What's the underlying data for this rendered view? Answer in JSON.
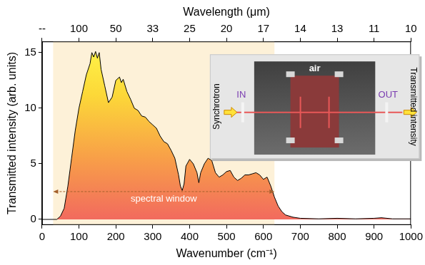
{
  "chart_data": {
    "type": "area",
    "xlabel": "Wavenumber (cm⁻¹)",
    "ylabel": "Transmitted intensity (arb. units)",
    "x2label": "Wavelength (μm)",
    "xlim": [
      0,
      1000
    ],
    "xticks": [
      0,
      100,
      200,
      300,
      400,
      500,
      600,
      700,
      800,
      900,
      1000
    ],
    "x2lim": [
      0,
      1000
    ],
    "x2ticks": [
      {
        "value": 0,
        "label": "--"
      },
      {
        "value": 100,
        "label": "100"
      },
      {
        "value": 200,
        "label": "50"
      },
      {
        "value": 300,
        "label": "33"
      },
      {
        "value": 400,
        "label": "25"
      },
      {
        "value": 500,
        "label": "20"
      },
      {
        "value": 600,
        "label": "17"
      },
      {
        "value": 700,
        "label": "14"
      },
      {
        "value": 800,
        "label": "13"
      },
      {
        "value": 900,
        "label": "11"
      },
      {
        "value": 1000,
        "label": "10"
      }
    ],
    "ylim": [
      -0.5,
      16
    ],
    "yticks": [
      0,
      5,
      10,
      15
    ],
    "grid": false,
    "x": [
      0,
      40,
      50,
      60,
      70,
      80,
      90,
      100,
      110,
      120,
      130,
      135,
      140,
      145,
      150,
      155,
      160,
      170,
      180,
      190,
      200,
      210,
      215,
      220,
      230,
      240,
      250,
      260,
      270,
      280,
      290,
      300,
      310,
      320,
      330,
      340,
      350,
      360,
      370,
      375,
      380,
      385,
      390,
      400,
      410,
      420,
      425,
      430,
      440,
      450,
      460,
      470,
      480,
      490,
      500,
      510,
      520,
      530,
      540,
      550,
      560,
      570,
      580,
      590,
      600,
      610,
      620,
      630,
      640,
      650,
      660,
      670,
      680,
      700,
      750,
      800,
      850,
      900,
      920,
      950,
      1000
    ],
    "series": [
      {
        "name": "Transmitted intensity",
        "color": "#000000",
        "values": [
          0,
          0,
          0.3,
          1.0,
          3,
          5.5,
          8,
          10,
          11.5,
          13,
          14,
          15,
          14.6,
          15.1,
          14.5,
          15,
          13.5,
          12,
          10.5,
          11,
          12.5,
          12.8,
          12.3,
          12.6,
          11.5,
          10.8,
          10,
          9.8,
          9.3,
          9.2,
          8.8,
          8.5,
          8.2,
          7.5,
          7,
          6.8,
          6.2,
          5.5,
          4,
          3,
          2.6,
          3.2,
          4.8,
          5.4,
          5,
          4.2,
          3.3,
          4.2,
          5,
          5.5,
          5.3,
          4.2,
          3.8,
          4.0,
          4.3,
          4.4,
          3.8,
          3.5,
          3.7,
          4.0,
          4.0,
          4.1,
          4.2,
          4.0,
          3.6,
          3.8,
          3.0,
          2.0,
          1.2,
          0.7,
          0.4,
          0.3,
          0.2,
          0.1,
          0.05,
          0.1,
          0.05,
          0.1,
          0.15,
          0.05,
          0.05
        ]
      }
    ],
    "spectral_window": {
      "label": "spectral window",
      "xlim": [
        30,
        630
      ],
      "arrow_y": 2.5
    },
    "inset": {
      "top": "air",
      "in": "IN",
      "out": "OUT",
      "left": "Synchrotron",
      "right": "Transmitted intensity"
    }
  }
}
